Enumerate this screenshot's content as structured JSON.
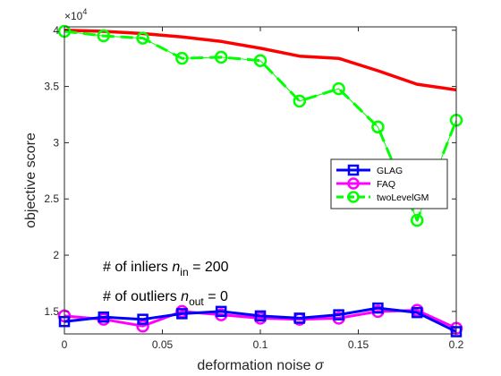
{
  "chart_data": {
    "type": "line",
    "xlabel": "deformation noise",
    "xlabel_symbol": "σ",
    "ylabel": "objective score",
    "y_exponent_label": "×10",
    "y_exponent_power": "4",
    "xlim": [
      0,
      0.2
    ],
    "ylim": [
      13000,
      40300
    ],
    "x_ticks": [
      0,
      0.05,
      0.1,
      0.15,
      0.2
    ],
    "x_tick_labels": [
      "0",
      "0.05",
      "0.1",
      "0.15",
      "0.2"
    ],
    "y_ticks": [
      15000,
      20000,
      25000,
      30000,
      35000,
      40000
    ],
    "y_tick_labels": [
      "1.5",
      "2",
      "2.5",
      "3",
      "3.5",
      "4"
    ],
    "grid": false,
    "legend_position": "right",
    "annotations": [
      {
        "prefix": "# of inliers ",
        "var": "n",
        "sub": "in",
        "suffix": " = 200"
      },
      {
        "prefix": "# of outliers ",
        "var": "n",
        "sub": "out",
        "suffix": " = 0"
      }
    ],
    "series": [
      {
        "name": "GLAG",
        "color": "#0000ff",
        "marker": "square",
        "line_style": "solid",
        "x": [
          0,
          0.02,
          0.04,
          0.06,
          0.08,
          0.1,
          0.12,
          0.14,
          0.16,
          0.18,
          0.2
        ],
        "y": [
          14100,
          14500,
          14300,
          14800,
          15000,
          14600,
          14400,
          14700,
          15300,
          14900,
          13200
        ]
      },
      {
        "name": "FAQ",
        "color": "#ff00ff",
        "marker": "circle",
        "line_style": "solid",
        "x": [
          0,
          0.02,
          0.04,
          0.06,
          0.08,
          0.1,
          0.12,
          0.14,
          0.16,
          0.18,
          0.2
        ],
        "y": [
          14600,
          14300,
          13700,
          15000,
          14700,
          14400,
          14300,
          14400,
          15000,
          15100,
          13500
        ]
      },
      {
        "name": "twoLevelGM",
        "color": "#00ff00",
        "marker": "circle",
        "line_style": "dashed",
        "x": [
          0,
          0.02,
          0.04,
          0.06,
          0.08,
          0.1,
          0.12,
          0.14,
          0.16,
          0.18,
          0.2
        ],
        "y": [
          39900,
          39500,
          39300,
          37500,
          37600,
          37300,
          33700,
          34800,
          31400,
          23100,
          32000
        ]
      },
      {
        "name": "",
        "color": "#ff0000",
        "marker": "none",
        "line_style": "solid",
        "x": [
          0,
          0.02,
          0.04,
          0.06,
          0.08,
          0.1,
          0.12,
          0.14,
          0.16,
          0.18,
          0.2
        ],
        "y": [
          40000,
          39900,
          39700,
          39400,
          39000,
          38400,
          37700,
          37500,
          36400,
          35200,
          34700
        ]
      }
    ]
  }
}
